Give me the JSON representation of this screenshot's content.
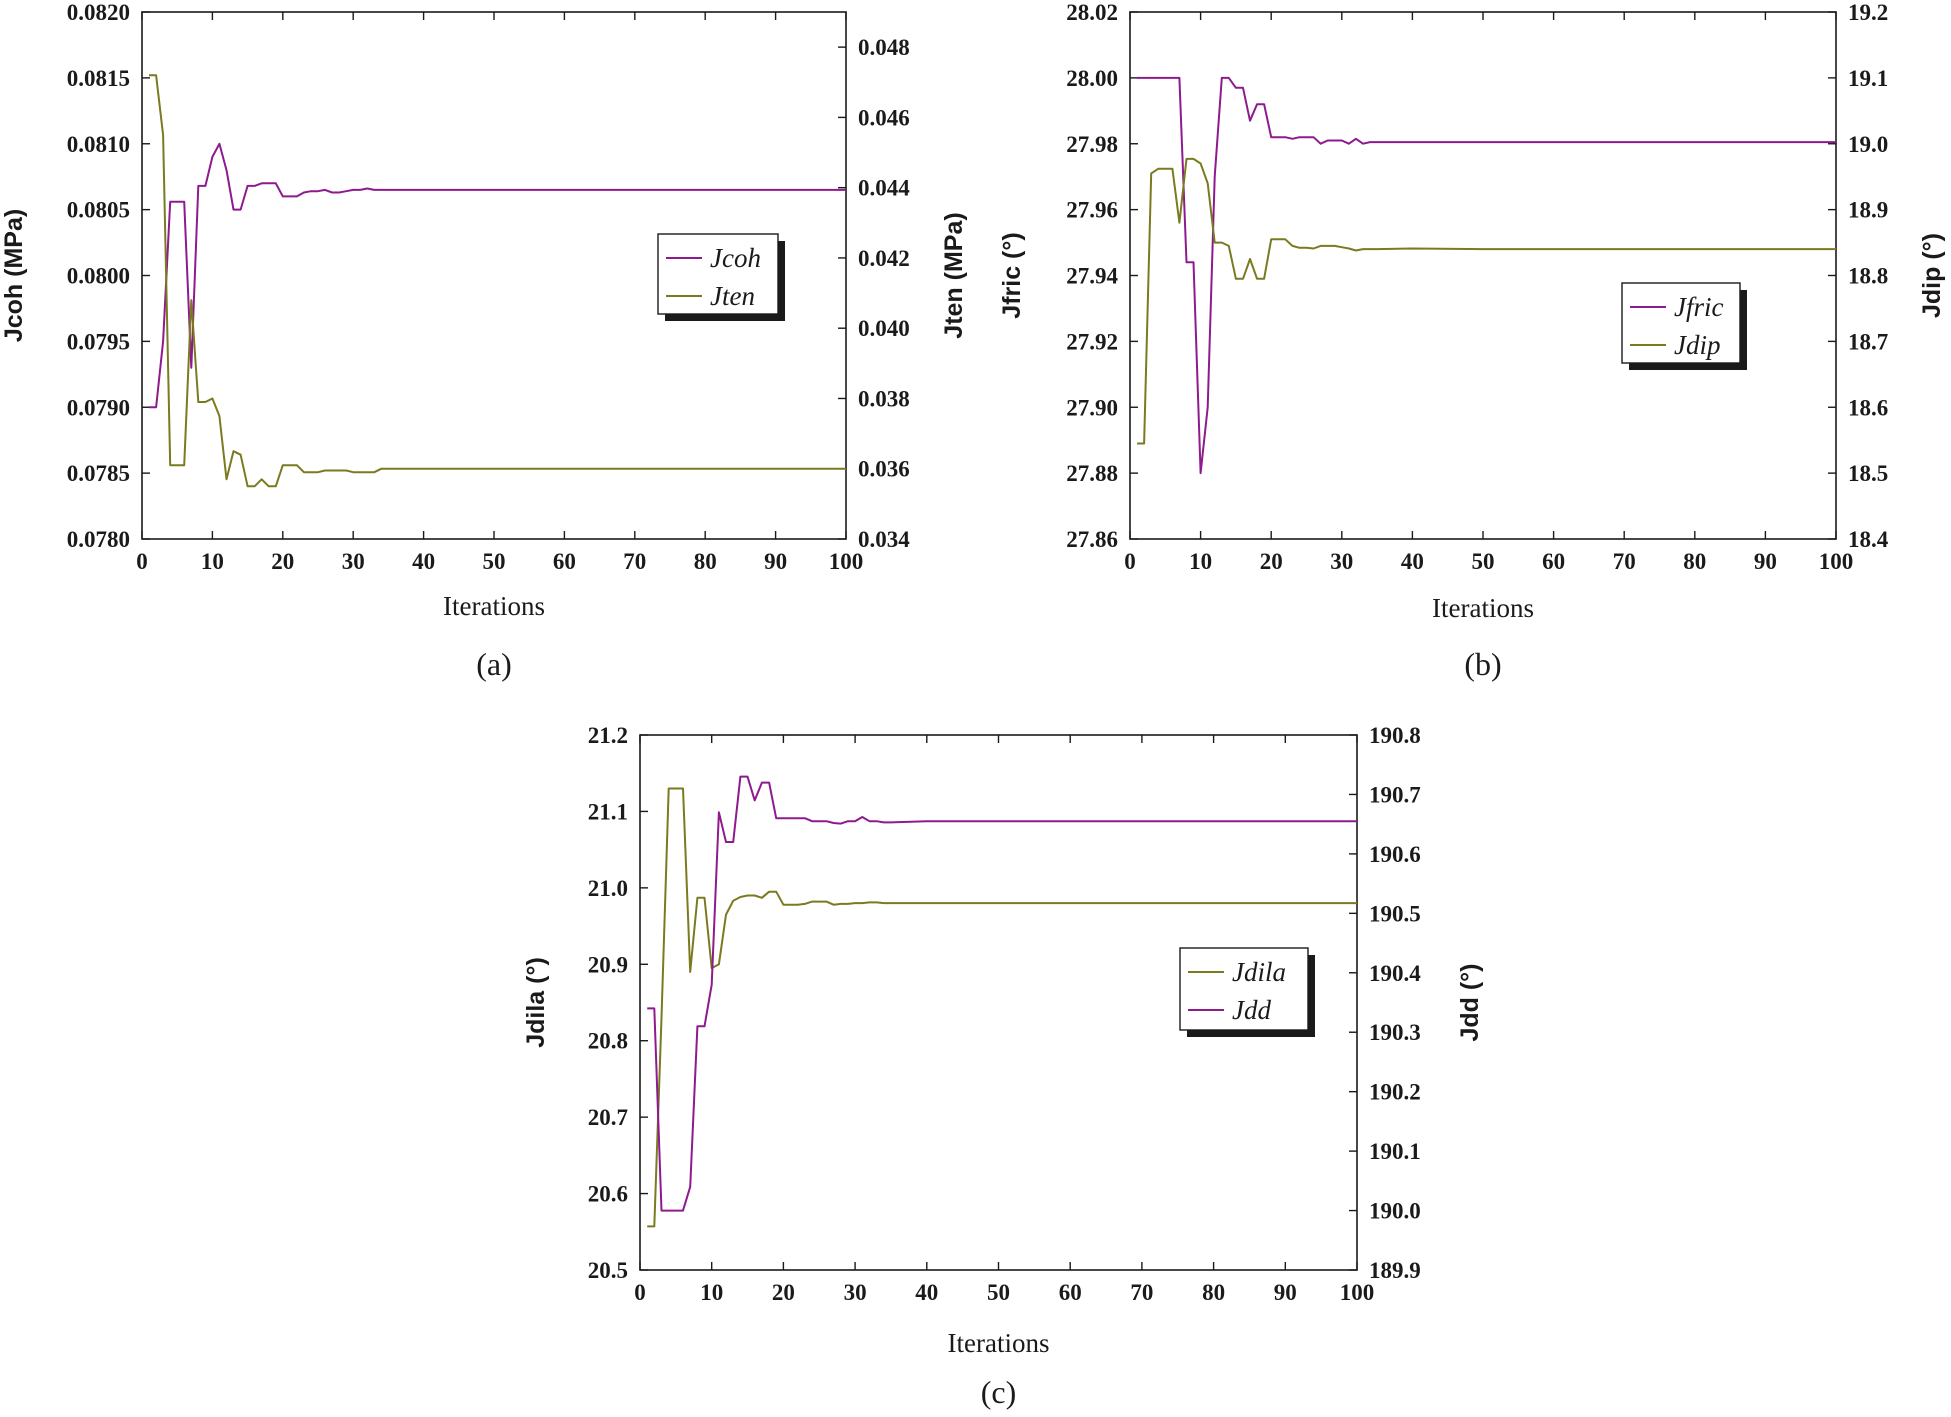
{
  "colors": {
    "purple": "#8e1a8e",
    "olive": "#7a7a20"
  },
  "chart_data": [
    {
      "type": "line",
      "panel_label": "(a)",
      "xlabel": "Iterations",
      "ylabel_left": "Jcoh (MPa)",
      "ylabel_right": "Jten (MPa)",
      "xlim": [
        0,
        100
      ],
      "ylim_left": [
        0.078,
        0.082
      ],
      "ylim_right": [
        0.034,
        0.049
      ],
      "x_ticks": [
        "0",
        "10",
        "20",
        "30",
        "40",
        "50",
        "60",
        "70",
        "80",
        "90",
        "100"
      ],
      "y_ticks_left": [
        "0.0780",
        "0.0785",
        "0.0790",
        "0.0795",
        "0.0800",
        "0.0805",
        "0.0810",
        "0.0815",
        "0.0820"
      ],
      "y_ticks_right": [
        "0.034",
        "0.036",
        "0.038",
        "0.040",
        "0.042",
        "0.044",
        "0.046",
        "0.048"
      ],
      "legend_position": "right-middle",
      "series": [
        {
          "name": "Jcoh",
          "axis": "left",
          "color": "#8e1a8e",
          "x": [
            1,
            2,
            3,
            4,
            5,
            6,
            7,
            8,
            9,
            10,
            11,
            12,
            13,
            14,
            15,
            16,
            17,
            18,
            19,
            20,
            21,
            22,
            23,
            24,
            25,
            26,
            27,
            28,
            29,
            30,
            31,
            32,
            33,
            34,
            35,
            40,
            50,
            60,
            70,
            80,
            90,
            100
          ],
          "values": [
            0.079,
            0.079,
            0.0795,
            0.08056,
            0.08056,
            0.08056,
            0.0793,
            0.08068,
            0.08068,
            0.0809,
            0.081,
            0.0808,
            0.0805,
            0.0805,
            0.08068,
            0.08068,
            0.0807,
            0.0807,
            0.0807,
            0.0806,
            0.0806,
            0.0806,
            0.08063,
            0.08064,
            0.08064,
            0.08065,
            0.08063,
            0.08063,
            0.08064,
            0.08065,
            0.08065,
            0.08066,
            0.08065,
            0.08065,
            0.08065,
            0.08065,
            0.08065,
            0.08065,
            0.08065,
            0.08065,
            0.08065,
            0.08065
          ]
        },
        {
          "name": "Jten",
          "axis": "right",
          "color": "#7a7a20",
          "x": [
            1,
            2,
            3,
            4,
            5,
            6,
            7,
            8,
            9,
            10,
            11,
            12,
            13,
            14,
            15,
            16,
            17,
            18,
            19,
            20,
            21,
            22,
            23,
            24,
            25,
            26,
            27,
            28,
            29,
            30,
            31,
            32,
            33,
            34,
            35,
            40,
            50,
            60,
            70,
            80,
            90,
            100
          ],
          "values": [
            0.0472,
            0.0472,
            0.0455,
            0.0361,
            0.0361,
            0.0361,
            0.0408,
            0.0379,
            0.0379,
            0.038,
            0.0375,
            0.0357,
            0.0365,
            0.0364,
            0.0355,
            0.0355,
            0.0357,
            0.0355,
            0.0355,
            0.0361,
            0.0361,
            0.0361,
            0.0359,
            0.0359,
            0.0359,
            0.03595,
            0.03595,
            0.03595,
            0.03595,
            0.0359,
            0.0359,
            0.0359,
            0.0359,
            0.036,
            0.036,
            0.036,
            0.036,
            0.036,
            0.036,
            0.036,
            0.036,
            0.036
          ]
        }
      ]
    },
    {
      "type": "line",
      "panel_label": "(b)",
      "xlabel": "Iterations",
      "ylabel_left": "Jfric (°)",
      "ylabel_right": "Jdip (°)",
      "xlim": [
        0,
        100
      ],
      "ylim_left": [
        27.86,
        28.02
      ],
      "ylim_right": [
        18.4,
        19.2
      ],
      "x_ticks": [
        "0",
        "10",
        "20",
        "30",
        "40",
        "50",
        "60",
        "70",
        "80",
        "90",
        "100"
      ],
      "y_ticks_left": [
        "27.86",
        "27.88",
        "27.90",
        "27.92",
        "27.94",
        "27.96",
        "27.98",
        "28.00",
        "28.02"
      ],
      "y_ticks_right": [
        "18.4",
        "18.5",
        "18.6",
        "18.7",
        "18.8",
        "18.9",
        "19.0",
        "19.1",
        "19.2"
      ],
      "legend_position": "lower-right",
      "series": [
        {
          "name": "Jfric",
          "axis": "left",
          "color": "#8e1a8e",
          "x": [
            1,
            2,
            3,
            4,
            5,
            6,
            7,
            8,
            9,
            10,
            11,
            12,
            13,
            14,
            15,
            16,
            17,
            18,
            19,
            20,
            21,
            22,
            23,
            24,
            25,
            26,
            27,
            28,
            29,
            30,
            31,
            32,
            33,
            34,
            35,
            40,
            50,
            60,
            70,
            80,
            90,
            100
          ],
          "values": [
            28.0,
            28.0,
            28.0,
            28.0,
            28.0,
            28.0,
            28.0,
            27.944,
            27.944,
            27.88,
            27.9,
            27.97,
            28.0,
            28.0,
            27.997,
            27.997,
            27.987,
            27.992,
            27.992,
            27.982,
            27.982,
            27.982,
            27.9815,
            27.982,
            27.982,
            27.982,
            27.98,
            27.981,
            27.981,
            27.981,
            27.98,
            27.9815,
            27.98,
            27.9805,
            27.9805,
            27.9805,
            27.9805,
            27.9805,
            27.9805,
            27.9805,
            27.9805,
            27.9805
          ]
        },
        {
          "name": "Jdip",
          "axis": "right",
          "color": "#7a7a20",
          "x": [
            1,
            2,
            3,
            4,
            5,
            6,
            7,
            8,
            9,
            10,
            11,
            12,
            13,
            14,
            15,
            16,
            17,
            18,
            19,
            20,
            21,
            22,
            23,
            24,
            25,
            26,
            27,
            28,
            29,
            30,
            31,
            32,
            33,
            34,
            35,
            40,
            50,
            60,
            70,
            80,
            90,
            100
          ],
          "values": [
            18.545,
            18.545,
            18.955,
            18.962,
            18.962,
            18.962,
            18.88,
            18.977,
            18.977,
            18.97,
            18.94,
            18.85,
            18.85,
            18.845,
            18.795,
            18.795,
            18.825,
            18.795,
            18.795,
            18.855,
            18.855,
            18.855,
            18.845,
            18.842,
            18.842,
            18.841,
            18.845,
            18.845,
            18.845,
            18.843,
            18.841,
            18.838,
            18.84,
            18.84,
            18.84,
            18.841,
            18.84,
            18.84,
            18.84,
            18.84,
            18.84,
            18.84
          ]
        }
      ]
    },
    {
      "type": "line",
      "panel_label": "(c)",
      "xlabel": "Iterations",
      "ylabel_left": "Jdila (°)",
      "ylabel_right": "Jdd (°)",
      "xlim": [
        0,
        100
      ],
      "ylim_left": [
        20.5,
        21.2
      ],
      "ylim_right": [
        189.9,
        190.8
      ],
      "x_ticks": [
        "0",
        "10",
        "20",
        "30",
        "40",
        "50",
        "60",
        "70",
        "80",
        "90",
        "100"
      ],
      "y_ticks_left": [
        "20.5",
        "20.6",
        "20.7",
        "20.8",
        "20.9",
        "21.0",
        "21.1",
        "21.2"
      ],
      "y_ticks_right": [
        "189.9",
        "190.0",
        "190.1",
        "190.2",
        "190.3",
        "190.4",
        "190.5",
        "190.6",
        "190.7",
        "190.8"
      ],
      "legend_position": "right-middle",
      "series": [
        {
          "name": "Jdila",
          "axis": "left",
          "color": "#7a7a20",
          "x": [
            1,
            2,
            3,
            4,
            5,
            6,
            7,
            8,
            9,
            10,
            11,
            12,
            13,
            14,
            15,
            16,
            17,
            18,
            19,
            20,
            21,
            22,
            23,
            24,
            25,
            26,
            27,
            28,
            29,
            30,
            31,
            32,
            33,
            34,
            35,
            40,
            50,
            60,
            70,
            80,
            90,
            100
          ],
          "values": [
            20.557,
            20.557,
            20.83,
            21.13,
            21.13,
            21.13,
            20.89,
            20.987,
            20.987,
            20.895,
            20.9,
            20.965,
            20.983,
            20.988,
            20.99,
            20.99,
            20.987,
            20.995,
            20.995,
            20.978,
            20.978,
            20.978,
            20.979,
            20.982,
            20.982,
            20.982,
            20.978,
            20.979,
            20.979,
            20.98,
            20.98,
            20.981,
            20.981,
            20.98,
            20.98,
            20.98,
            20.98,
            20.98,
            20.98,
            20.98,
            20.98,
            20.98
          ]
        },
        {
          "name": "Jdd",
          "axis": "right",
          "color": "#8e1a8e",
          "x": [
            1,
            2,
            3,
            4,
            5,
            6,
            7,
            8,
            9,
            10,
            11,
            12,
            13,
            14,
            15,
            16,
            17,
            18,
            19,
            20,
            21,
            22,
            23,
            24,
            25,
            26,
            27,
            28,
            29,
            30,
            31,
            32,
            33,
            34,
            35,
            40,
            50,
            60,
            70,
            80,
            90,
            100
          ],
          "values": [
            190.34,
            190.34,
            190.0,
            190.0,
            190.0,
            190.0,
            190.04,
            190.31,
            190.31,
            190.38,
            190.67,
            190.62,
            190.62,
            190.73,
            190.73,
            190.69,
            190.72,
            190.72,
            190.66,
            190.66,
            190.66,
            190.66,
            190.66,
            190.655,
            190.655,
            190.655,
            190.652,
            190.651,
            190.655,
            190.655,
            190.662,
            190.655,
            190.655,
            190.653,
            190.653,
            190.655,
            190.655,
            190.655,
            190.655,
            190.655,
            190.655,
            190.655
          ]
        }
      ]
    }
  ]
}
